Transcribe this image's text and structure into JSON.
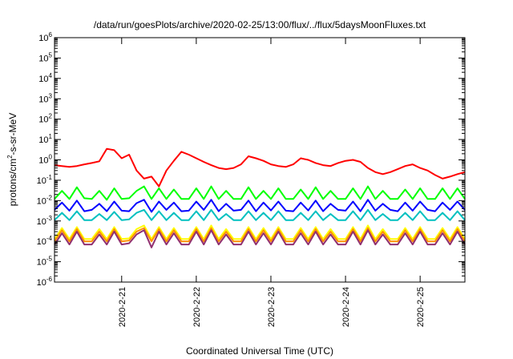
{
  "chart_data": {
    "type": "line",
    "title": "/data/run/goesPlots/archive/2020-02-25/13:00/flux/../flux/5daysMoonFluxes.txt",
    "xlabel": "Coordinated Universal Time (UTC)",
    "ylabel_base": "protons/cm",
    "ylabel_sup": "2",
    "ylabel_tail": "-s-sr-MeV",
    "yscale": "log",
    "ylim_exp": [
      -6,
      6
    ],
    "y_tick_base": "10",
    "y_tick_exponents": [
      "-6",
      "-5",
      "-4",
      "-3",
      "-2",
      "-1",
      "0",
      "1",
      "2",
      "3",
      "4",
      "5",
      "6"
    ],
    "xlim_days": [
      20.1,
      25.6
    ],
    "x_ticks": [
      {
        "label": "2020-2-21",
        "day": 21
      },
      {
        "label": "2020-2-22",
        "day": 22
      },
      {
        "label": "2020-2-23",
        "day": 23
      },
      {
        "label": "2020-2-24",
        "day": 24
      },
      {
        "label": "2020-2-25",
        "day": 25
      }
    ],
    "grid": false,
    "series": [
      {
        "color": "#ff0000",
        "x": [
          20.1,
          20.2,
          20.3,
          20.4,
          20.5,
          20.6,
          20.7,
          20.8,
          20.9,
          21.0,
          21.1,
          21.2,
          21.3,
          21.4,
          21.5,
          21.6,
          21.7,
          21.8,
          21.9,
          22.0,
          22.1,
          22.2,
          22.3,
          22.4,
          22.5,
          22.6,
          22.7,
          22.8,
          22.9,
          23.0,
          23.1,
          23.2,
          23.3,
          23.4,
          23.5,
          23.6,
          23.7,
          23.8,
          23.9,
          24.0,
          24.1,
          24.2,
          24.3,
          24.4,
          24.5,
          24.6,
          24.7,
          24.8,
          24.9,
          25.0,
          25.1,
          25.2,
          25.3,
          25.4,
          25.5,
          25.6
        ],
        "y": [
          0.55,
          0.5,
          0.45,
          0.5,
          0.6,
          0.7,
          0.85,
          3.5,
          3.0,
          1.2,
          1.8,
          0.3,
          0.12,
          0.15,
          0.05,
          0.3,
          0.9,
          2.5,
          1.8,
          1.2,
          0.8,
          0.55,
          0.4,
          0.35,
          0.4,
          0.6,
          1.5,
          1.2,
          0.9,
          0.6,
          0.5,
          0.45,
          0.6,
          1.2,
          1.0,
          0.7,
          0.55,
          0.5,
          0.7,
          0.9,
          1.0,
          0.8,
          0.4,
          0.25,
          0.2,
          0.25,
          0.35,
          0.5,
          0.6,
          0.4,
          0.3,
          0.18,
          0.12,
          0.15,
          0.2,
          0.25
        ]
      },
      {
        "color": "#00ff00",
        "x": [
          20.1,
          20.2,
          20.3,
          20.4,
          20.5,
          20.6,
          20.7,
          20.8,
          20.9,
          21.0,
          21.1,
          21.2,
          21.3,
          21.4,
          21.5,
          21.6,
          21.7,
          21.8,
          21.9,
          22.0,
          22.1,
          22.2,
          22.3,
          22.4,
          22.5,
          22.6,
          22.7,
          22.8,
          22.9,
          23.0,
          23.1,
          23.2,
          23.3,
          23.4,
          23.5,
          23.6,
          23.7,
          23.8,
          23.9,
          24.0,
          24.1,
          24.2,
          24.3,
          24.4,
          24.5,
          24.6,
          24.7,
          24.8,
          24.9,
          25.0,
          25.1,
          25.2,
          25.3,
          25.4,
          25.5,
          25.6
        ],
        "y": [
          0.012,
          0.03,
          0.012,
          0.045,
          0.013,
          0.012,
          0.03,
          0.011,
          0.04,
          0.012,
          0.013,
          0.03,
          0.05,
          0.012,
          0.04,
          0.012,
          0.035,
          0.012,
          0.012,
          0.04,
          0.012,
          0.05,
          0.012,
          0.03,
          0.012,
          0.012,
          0.045,
          0.012,
          0.03,
          0.012,
          0.04,
          0.012,
          0.012,
          0.035,
          0.012,
          0.045,
          0.012,
          0.03,
          0.012,
          0.012,
          0.04,
          0.012,
          0.05,
          0.012,
          0.03,
          0.012,
          0.012,
          0.035,
          0.012,
          0.04,
          0.012,
          0.012,
          0.04,
          0.012,
          0.04,
          0.012
        ]
      },
      {
        "color": "#0000ff",
        "x": [
          20.1,
          20.2,
          20.3,
          20.4,
          20.5,
          20.6,
          20.7,
          20.8,
          20.9,
          21.0,
          21.1,
          21.2,
          21.3,
          21.4,
          21.5,
          21.6,
          21.7,
          21.8,
          21.9,
          22.0,
          22.1,
          22.2,
          22.3,
          22.4,
          22.5,
          22.6,
          22.7,
          22.8,
          22.9,
          23.0,
          23.1,
          23.2,
          23.3,
          23.4,
          23.5,
          23.6,
          23.7,
          23.8,
          23.9,
          24.0,
          24.1,
          24.2,
          24.3,
          24.4,
          24.5,
          24.6,
          24.7,
          24.8,
          24.9,
          25.0,
          25.1,
          25.2,
          25.3,
          25.4,
          25.5,
          25.6
        ],
        "y": [
          0.0035,
          0.008,
          0.0032,
          0.01,
          0.003,
          0.0035,
          0.007,
          0.003,
          0.009,
          0.0032,
          0.003,
          0.0075,
          0.011,
          0.0028,
          0.009,
          0.0035,
          0.008,
          0.003,
          0.0032,
          0.009,
          0.0035,
          0.011,
          0.003,
          0.007,
          0.0032,
          0.0035,
          0.01,
          0.003,
          0.008,
          0.0033,
          0.009,
          0.0032,
          0.003,
          0.008,
          0.0033,
          0.01,
          0.003,
          0.007,
          0.0035,
          0.0032,
          0.009,
          0.003,
          0.011,
          0.0032,
          0.007,
          0.0035,
          0.003,
          0.008,
          0.0032,
          0.009,
          0.0035,
          0.003,
          0.008,
          0.0035,
          0.009,
          0.0035
        ]
      },
      {
        "color": "#00c0c0",
        "x": [
          20.1,
          20.2,
          20.3,
          20.4,
          20.5,
          20.6,
          20.7,
          20.8,
          20.9,
          21.0,
          21.1,
          21.2,
          21.3,
          21.4,
          21.5,
          21.6,
          21.7,
          21.8,
          21.9,
          22.0,
          22.1,
          22.2,
          22.3,
          22.4,
          22.5,
          22.6,
          22.7,
          22.8,
          22.9,
          23.0,
          23.1,
          23.2,
          23.3,
          23.4,
          23.5,
          23.6,
          23.7,
          23.8,
          23.9,
          24.0,
          24.1,
          24.2,
          24.3,
          24.4,
          24.5,
          24.6,
          24.7,
          24.8,
          24.9,
          25.0,
          25.1,
          25.2,
          25.3,
          25.4,
          25.5,
          25.6
        ],
        "y": [
          0.0011,
          0.0025,
          0.0011,
          0.003,
          0.0011,
          0.0011,
          0.0022,
          0.0011,
          0.0028,
          0.0011,
          0.0012,
          0.0025,
          0.0035,
          0.0011,
          0.003,
          0.0011,
          0.0025,
          0.0011,
          0.0011,
          0.003,
          0.0011,
          0.0035,
          0.0011,
          0.0022,
          0.0011,
          0.0011,
          0.003,
          0.0011,
          0.0025,
          0.0011,
          0.003,
          0.0011,
          0.0011,
          0.0025,
          0.0011,
          0.003,
          0.0011,
          0.0022,
          0.0011,
          0.0011,
          0.003,
          0.0011,
          0.0035,
          0.0011,
          0.0022,
          0.0011,
          0.0011,
          0.0025,
          0.0011,
          0.003,
          0.0011,
          0.0011,
          0.0025,
          0.0011,
          0.003,
          0.0011
        ]
      },
      {
        "color": "#ffff00",
        "x": [
          20.1,
          20.2,
          20.3,
          20.4,
          20.5,
          20.6,
          20.7,
          20.8,
          20.9,
          21.0,
          21.1,
          21.2,
          21.3,
          21.4,
          21.5,
          21.6,
          21.7,
          21.8,
          21.9,
          22.0,
          22.1,
          22.2,
          22.3,
          22.4,
          22.5,
          22.6,
          22.7,
          22.8,
          22.9,
          23.0,
          23.1,
          23.2,
          23.3,
          23.4,
          23.5,
          23.6,
          23.7,
          23.8,
          23.9,
          24.0,
          24.1,
          24.2,
          24.3,
          24.4,
          24.5,
          24.6,
          24.7,
          24.8,
          24.9,
          25.0,
          25.1,
          25.2,
          25.3,
          25.4,
          25.5,
          25.6
        ],
        "y": [
          0.00013,
          0.00045,
          0.00013,
          0.0005,
          0.00013,
          0.00013,
          0.0004,
          0.00013,
          0.0005,
          0.00013,
          0.00014,
          0.0004,
          0.0006,
          0.00013,
          0.0005,
          0.00013,
          0.00045,
          0.00013,
          0.00013,
          0.0005,
          0.00013,
          0.0006,
          0.00013,
          0.0004,
          0.00013,
          0.00013,
          0.0005,
          0.00013,
          0.00045,
          0.00013,
          0.0005,
          0.00013,
          0.00013,
          0.00045,
          0.00013,
          0.0005,
          0.00013,
          0.0004,
          0.00013,
          0.00013,
          0.0005,
          0.00013,
          0.0006,
          0.00013,
          0.0004,
          0.00013,
          0.00013,
          0.00045,
          0.00013,
          0.0005,
          0.00013,
          0.00013,
          0.00045,
          0.00013,
          0.0005,
          0.00013
        ]
      },
      {
        "color": "#ff9000",
        "x": [
          20.1,
          20.2,
          20.3,
          20.4,
          20.5,
          20.6,
          20.7,
          20.8,
          20.9,
          21.0,
          21.1,
          21.2,
          21.3,
          21.4,
          21.5,
          21.6,
          21.7,
          21.8,
          21.9,
          22.0,
          22.1,
          22.2,
          22.3,
          22.4,
          22.5,
          22.6,
          22.7,
          22.8,
          22.9,
          23.0,
          23.1,
          23.2,
          23.3,
          23.4,
          23.5,
          23.6,
          23.7,
          23.8,
          23.9,
          24.0,
          24.1,
          24.2,
          24.3,
          24.4,
          24.5,
          24.6,
          24.7,
          24.8,
          24.9,
          25.0,
          25.1,
          25.2,
          25.3,
          25.4,
          25.5,
          25.6
        ],
        "y": [
          0.0001,
          0.00035,
          0.0001,
          0.0004,
          0.0001,
          0.0001,
          0.0003,
          0.0001,
          0.0004,
          0.0001,
          0.00011,
          0.0003,
          0.00045,
          0.0001,
          0.0004,
          0.0001,
          0.00035,
          0.0001,
          0.0001,
          0.0004,
          0.0001,
          0.00045,
          0.0001,
          0.0003,
          0.0001,
          0.0001,
          0.0004,
          0.0001,
          0.00035,
          0.0001,
          0.0004,
          0.0001,
          0.0001,
          0.00035,
          0.0001,
          0.0004,
          0.0001,
          0.0003,
          0.0001,
          0.0001,
          0.0004,
          0.0001,
          0.00045,
          0.0001,
          0.0003,
          0.0001,
          0.0001,
          0.00035,
          0.0001,
          0.0004,
          0.0001,
          0.0001,
          0.00035,
          0.0001,
          0.0004,
          0.0001
        ]
      },
      {
        "color": "#903070",
        "x": [
          20.1,
          20.2,
          20.3,
          20.4,
          20.5,
          20.6,
          20.7,
          20.8,
          20.9,
          21.0,
          21.1,
          21.2,
          21.3,
          21.4,
          21.5,
          21.6,
          21.7,
          21.8,
          21.9,
          22.0,
          22.1,
          22.2,
          22.3,
          22.4,
          22.5,
          22.6,
          22.7,
          22.8,
          22.9,
          23.0,
          23.1,
          23.2,
          23.3,
          23.4,
          23.5,
          23.6,
          23.7,
          23.8,
          23.9,
          24.0,
          24.1,
          24.2,
          24.3,
          24.4,
          24.5,
          24.6,
          24.7,
          24.8,
          24.9,
          25.0,
          25.1,
          25.2,
          25.3,
          25.4,
          25.5,
          25.6
        ],
        "y": [
          7e-05,
          0.00025,
          7e-05,
          0.0003,
          7e-05,
          7e-05,
          0.00022,
          7e-05,
          0.0003,
          7e-05,
          8e-05,
          0.00022,
          0.00035,
          5e-05,
          0.0003,
          7e-05,
          0.00025,
          7e-05,
          7e-05,
          0.0003,
          7e-05,
          0.00035,
          7e-05,
          0.00022,
          7e-05,
          7e-05,
          0.0003,
          7e-05,
          0.00025,
          7e-05,
          0.0003,
          7e-05,
          7e-05,
          0.00025,
          7e-05,
          0.0003,
          7e-05,
          0.00022,
          7e-05,
          7e-05,
          0.0003,
          7e-05,
          0.00035,
          7e-05,
          0.00022,
          7e-05,
          7e-05,
          0.00025,
          7e-05,
          0.0003,
          7e-05,
          7e-05,
          0.00025,
          7e-05,
          0.0003,
          7e-05
        ]
      }
    ]
  }
}
